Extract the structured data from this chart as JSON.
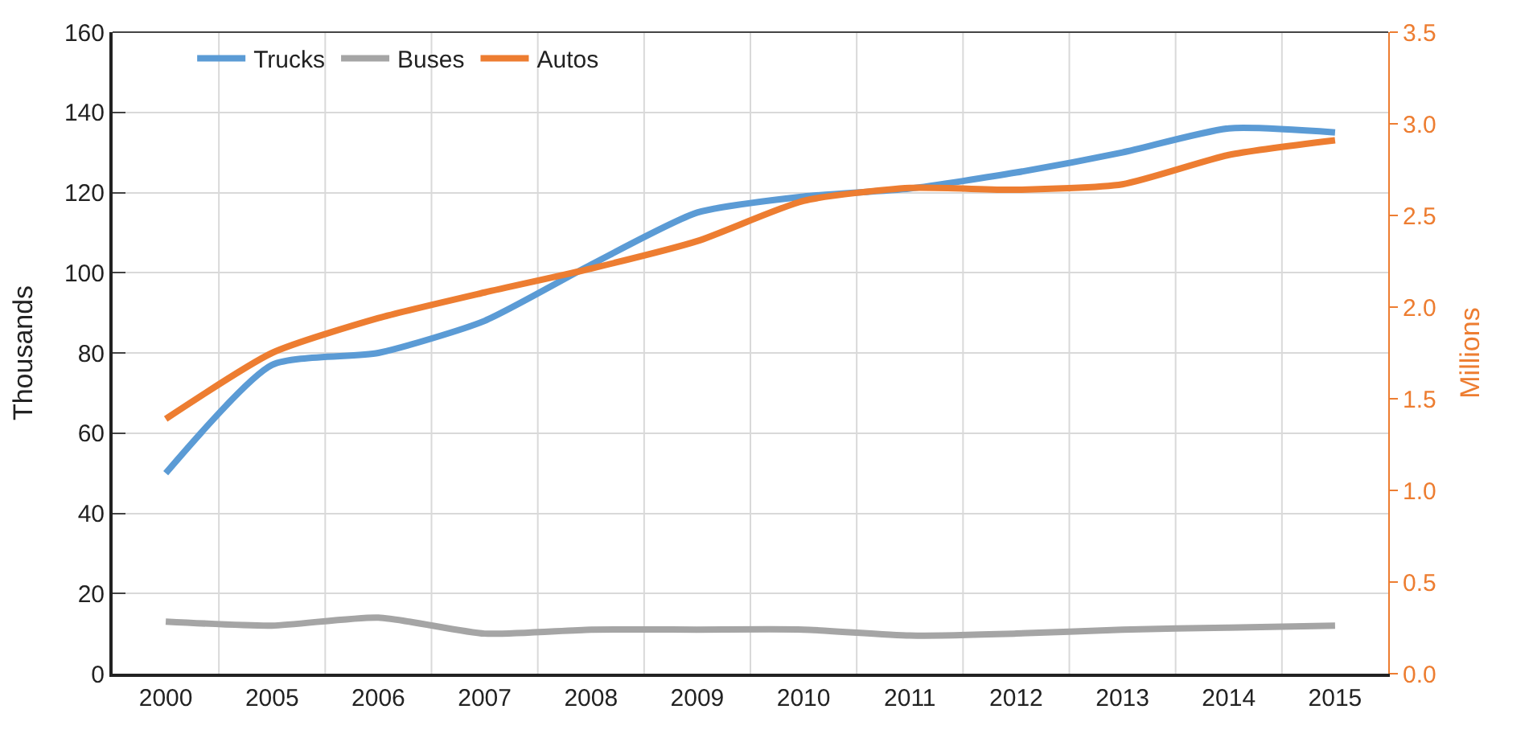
{
  "chart_data": {
    "type": "line",
    "ylabel": "Thousands",
    "y2label": "Millions",
    "categories": [
      "2000",
      "2005",
      "2006",
      "2007",
      "2008",
      "2009",
      "2010",
      "2011",
      "2012",
      "2013",
      "2014",
      "2015"
    ],
    "series": [
      {
        "name": "Trucks",
        "color": "#5b9bd5",
        "values": [
          50,
          77,
          80,
          88,
          102,
          115,
          119,
          121,
          125,
          130,
          136,
          135
        ]
      },
      {
        "name": "Buses",
        "color": "#a5a5a5",
        "values": [
          13,
          12,
          14,
          10,
          11,
          11,
          11,
          9.5,
          10,
          11,
          11.5,
          12
        ]
      },
      {
        "name": "Autos",
        "color": "#ed7d31",
        "axis": "y2",
        "values": [
          1.39,
          1.75,
          1.94,
          2.08,
          2.21,
          2.36,
          2.58,
          2.65,
          2.64,
          2.67,
          2.83,
          2.91
        ]
      }
    ],
    "ylim": [
      0,
      160
    ],
    "yticks": [
      0,
      20,
      40,
      60,
      80,
      100,
      120,
      140,
      160
    ],
    "y2lim": [
      0,
      3.5
    ],
    "y2ticks": [
      {
        "value": 0,
        "label": "0.0"
      },
      {
        "value": 0.5,
        "label": "0.5"
      },
      {
        "value": 1,
        "label": "1.0"
      },
      {
        "value": 1.5,
        "label": "1.5"
      },
      {
        "value": 2,
        "label": "2.0"
      },
      {
        "value": 2.5,
        "label": "2.5"
      },
      {
        "value": 3,
        "label": "3.0"
      },
      {
        "value": 3.5,
        "label": "3.5"
      }
    ],
    "grid": true,
    "legend": "top left",
    "line_style": "solid",
    "marker": "none"
  }
}
